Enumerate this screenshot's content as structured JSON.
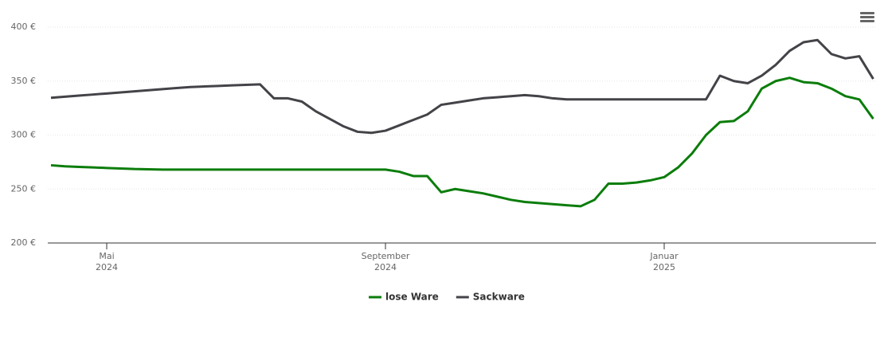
{
  "chart_data": {
    "type": "line",
    "categories": [
      null,
      null,
      null,
      null,
      "Mai 2024",
      null,
      null,
      null,
      null,
      null,
      null,
      null,
      null,
      null,
      null,
      null,
      null,
      null,
      null,
      null,
      null,
      null,
      null,
      null,
      "September 2024",
      null,
      null,
      null,
      null,
      null,
      null,
      null,
      null,
      null,
      null,
      null,
      null,
      null,
      null,
      null,
      null,
      null,
      null,
      null,
      "Januar 2025",
      null,
      null,
      null,
      null,
      null,
      null,
      null,
      null,
      null,
      null,
      null,
      null,
      null,
      null,
      null
    ],
    "series": [
      {
        "name": "lose Ware",
        "color": "#0b7d0b",
        "values": [
          272,
          271,
          270.5,
          270,
          269.5,
          269,
          268.5,
          268.3,
          268,
          268,
          268,
          268,
          268,
          268,
          268,
          268,
          268,
          268,
          268,
          268,
          268,
          268,
          268,
          268,
          268,
          266,
          262,
          262,
          247,
          250,
          248,
          246,
          243,
          240,
          238,
          237,
          236,
          235,
          234,
          240,
          255,
          255,
          256,
          258,
          261,
          270,
          283,
          300,
          312,
          313,
          322,
          343,
          350,
          353,
          349,
          348,
          343,
          336,
          333,
          315
        ]
      },
      {
        "name": "Sackware",
        "color": "#434348",
        "values": [
          334.5,
          335.5,
          336.5,
          337.5,
          338.5,
          339.5,
          340.5,
          341.5,
          342.5,
          343.5,
          344.5,
          345,
          345.5,
          346,
          346.5,
          347,
          334,
          334,
          331,
          322,
          315,
          308,
          303,
          302,
          304,
          309,
          314,
          319,
          328,
          330,
          332,
          334,
          335,
          336,
          337,
          336,
          334,
          333,
          333,
          333,
          333,
          333,
          333,
          333,
          333,
          333,
          333,
          333,
          355,
          350,
          348,
          355,
          365,
          378,
          386,
          388,
          375,
          371,
          373,
          352
        ]
      }
    ],
    "ylim": [
      200,
      400
    ],
    "yticks": [
      {
        "value": 200,
        "label": "200 €"
      },
      {
        "value": 250,
        "label": "250 €"
      },
      {
        "value": 300,
        "label": "300 €"
      },
      {
        "value": 350,
        "label": "350 €"
      },
      {
        "value": 400,
        "label": "400 €"
      }
    ],
    "grid": true
  }
}
